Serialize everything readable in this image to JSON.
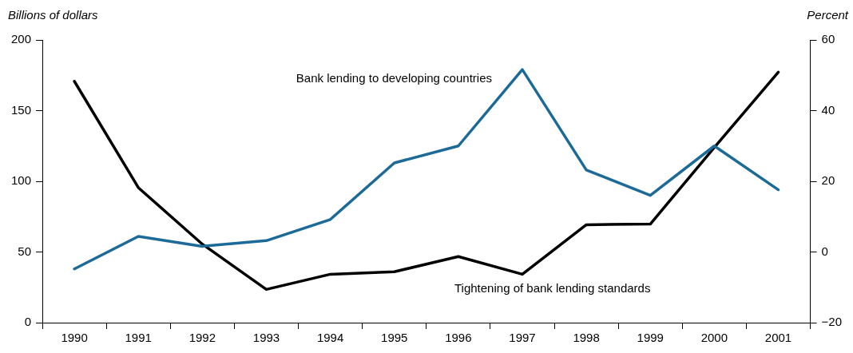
{
  "chart_data": {
    "type": "line",
    "categories": [
      "1990",
      "1991",
      "1992",
      "1993",
      "1994",
      "1995",
      "1996",
      "1997",
      "1998",
      "1999",
      "2000",
      "2001"
    ],
    "ylabel": "Billions of dollars",
    "y2label": "Percent",
    "ylim": [
      0,
      200
    ],
    "yticks": [
      0,
      50,
      100,
      150,
      200
    ],
    "y2lim": [
      -20,
      60
    ],
    "y2ticks": [
      {
        "value": -20,
        "label": "−20"
      },
      0,
      20,
      40,
      60
    ],
    "grid": false,
    "legend": false,
    "marker": "none",
    "line_style": "solid",
    "series": [
      {
        "name": "Bank lending to developing countries",
        "color": "#1c6a97",
        "values": [
          38,
          61,
          54,
          58,
          73,
          113,
          125,
          179,
          108,
          90,
          125,
          94
        ]
      },
      {
        "name": "Tightening of bank lending standards",
        "color": "#000000",
        "axis": "y2",
        "values": [
          48.3,
          18.2,
          2.2,
          -10.6,
          -6.3,
          -5.6,
          -1.3,
          -6.3,
          7.7,
          7.9,
          29.6,
          50.9
        ]
      }
    ]
  }
}
